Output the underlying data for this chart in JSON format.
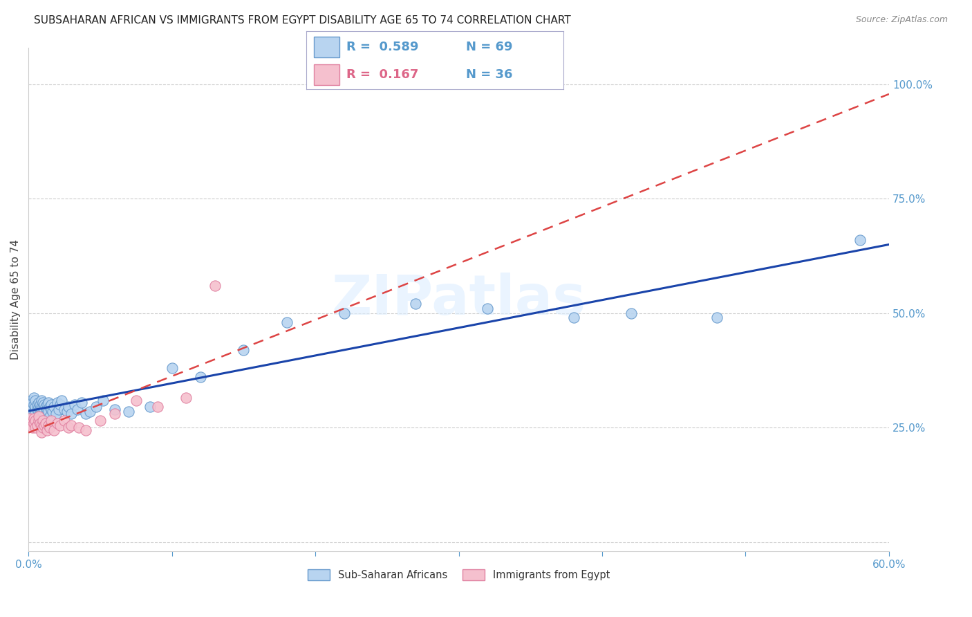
{
  "title": "SUBSAHARAN AFRICAN VS IMMIGRANTS FROM EGYPT DISABILITY AGE 65 TO 74 CORRELATION CHART",
  "source": "Source: ZipAtlas.com",
  "ylabel": "Disability Age 65 to 74",
  "legend_blue_R": "0.589",
  "legend_blue_N": "69",
  "legend_pink_R": "0.167",
  "legend_pink_N": "36",
  "legend_label_blue": "Sub-Saharan Africans",
  "legend_label_pink": "Immigrants from Egypt",
  "watermark": "ZIPatlas",
  "blue_color": "#b8d4f0",
  "blue_edge_color": "#6699cc",
  "pink_color": "#f5c0ce",
  "pink_edge_color": "#e080a0",
  "trend_blue_color": "#1a44aa",
  "trend_pink_color": "#dd4444",
  "blue_scatter_x": [
    0.001,
    0.002,
    0.002,
    0.003,
    0.003,
    0.004,
    0.004,
    0.004,
    0.005,
    0.005,
    0.005,
    0.006,
    0.006,
    0.007,
    0.007,
    0.007,
    0.008,
    0.008,
    0.008,
    0.009,
    0.009,
    0.009,
    0.01,
    0.01,
    0.01,
    0.011,
    0.011,
    0.012,
    0.012,
    0.013,
    0.013,
    0.014,
    0.014,
    0.015,
    0.015,
    0.016,
    0.016,
    0.017,
    0.018,
    0.019,
    0.02,
    0.021,
    0.022,
    0.023,
    0.025,
    0.027,
    0.028,
    0.03,
    0.032,
    0.034,
    0.037,
    0.04,
    0.043,
    0.047,
    0.052,
    0.06,
    0.07,
    0.085,
    0.1,
    0.12,
    0.15,
    0.18,
    0.22,
    0.27,
    0.32,
    0.38,
    0.42,
    0.48,
    0.58
  ],
  "blue_scatter_y": [
    0.29,
    0.31,
    0.28,
    0.295,
    0.305,
    0.285,
    0.3,
    0.315,
    0.295,
    0.31,
    0.28,
    0.29,
    0.3,
    0.295,
    0.285,
    0.305,
    0.29,
    0.3,
    0.28,
    0.295,
    0.31,
    0.285,
    0.295,
    0.305,
    0.285,
    0.29,
    0.3,
    0.295,
    0.28,
    0.3,
    0.29,
    0.305,
    0.285,
    0.295,
    0.275,
    0.29,
    0.3,
    0.285,
    0.295,
    0.28,
    0.305,
    0.29,
    0.3,
    0.31,
    0.29,
    0.285,
    0.295,
    0.28,
    0.3,
    0.29,
    0.305,
    0.28,
    0.285,
    0.295,
    0.31,
    0.29,
    0.285,
    0.295,
    0.38,
    0.36,
    0.42,
    0.48,
    0.5,
    0.52,
    0.51,
    0.49,
    0.5,
    0.49,
    0.66
  ],
  "pink_scatter_x": [
    0.001,
    0.002,
    0.003,
    0.003,
    0.004,
    0.004,
    0.005,
    0.005,
    0.006,
    0.007,
    0.007,
    0.008,
    0.009,
    0.009,
    0.01,
    0.01,
    0.011,
    0.012,
    0.013,
    0.014,
    0.015,
    0.016,
    0.018,
    0.02,
    0.022,
    0.025,
    0.028,
    0.03,
    0.035,
    0.04,
    0.05,
    0.06,
    0.075,
    0.09,
    0.11,
    0.13
  ],
  "pink_scatter_y": [
    0.27,
    0.26,
    0.255,
    0.25,
    0.27,
    0.26,
    0.265,
    0.25,
    0.255,
    0.265,
    0.275,
    0.26,
    0.255,
    0.24,
    0.265,
    0.25,
    0.255,
    0.26,
    0.245,
    0.255,
    0.25,
    0.265,
    0.245,
    0.26,
    0.255,
    0.265,
    0.25,
    0.255,
    0.25,
    0.245,
    0.265,
    0.28,
    0.31,
    0.295,
    0.315,
    0.56
  ],
  "xlim": [
    0.0,
    0.6
  ],
  "ylim": [
    -0.02,
    1.08
  ],
  "ytick_positions": [
    0.0,
    0.25,
    0.5,
    0.75,
    1.0
  ],
  "ytick_labels": [
    "",
    "25.0%",
    "50.0%",
    "75.0%",
    "100.0%"
  ]
}
